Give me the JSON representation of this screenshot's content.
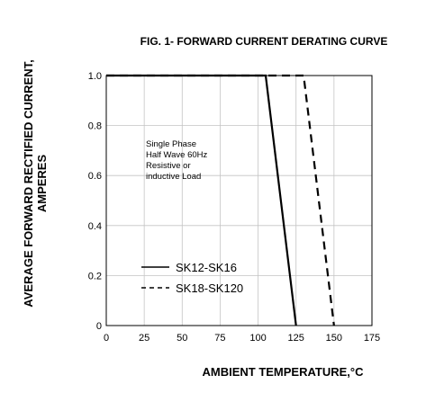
{
  "chart_data": {
    "type": "line",
    "title": "FIG. 1- FORWARD CURRENT DERATING CURVE",
    "xlabel": "AMBIENT TEMPERATURE,°C",
    "ylabel": [
      "AVERAGE FORWARD RECTIFIED CURRENT,",
      "AMPERES"
    ],
    "xlim": [
      0,
      175
    ],
    "ylim": [
      0,
      1.0
    ],
    "x_ticks": [
      "0",
      "25",
      "50",
      "75",
      "100",
      "125",
      "150",
      "175"
    ],
    "y_ticks": [
      "0",
      "0.2",
      "0.4",
      "0.6",
      "0.8",
      "1.0"
    ],
    "grid": true,
    "legend_position": "bottom-left",
    "annotation": [
      "Single Phase",
      "Half Wave 60Hz",
      "Resistive or",
      "inductive Load"
    ],
    "series": [
      {
        "name": "SK12-SK16",
        "style": "solid",
        "x": [
          0,
          105,
          125
        ],
        "y": [
          1.0,
          1.0,
          0
        ]
      },
      {
        "name": "SK18-SK120",
        "style": "dashed",
        "x": [
          0,
          130,
          150
        ],
        "y": [
          1.0,
          1.0,
          0
        ]
      }
    ]
  }
}
